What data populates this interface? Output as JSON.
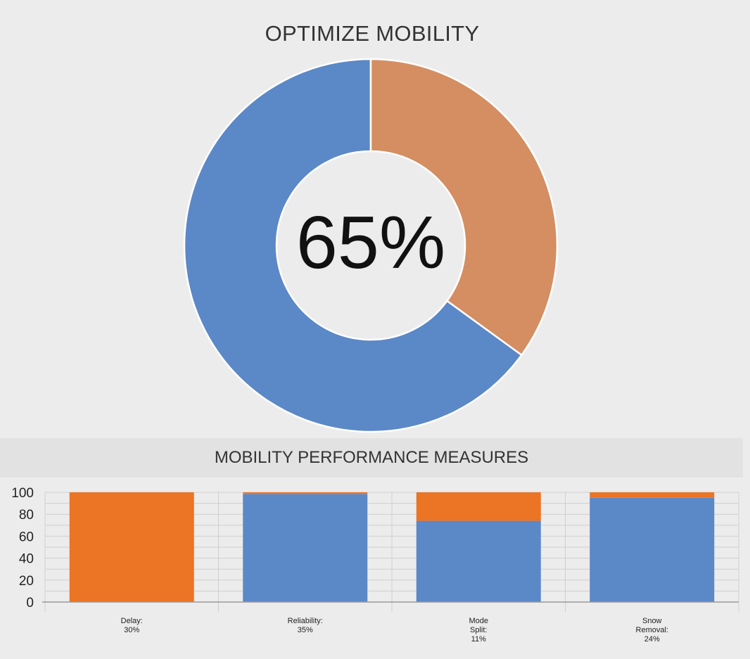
{
  "donut": {
    "title": "OPTIMIZE MOBILITY",
    "center_label": "65%"
  },
  "bars": {
    "title": "MOBILITY PERFORMANCE MEASURES"
  },
  "colors": {
    "blue": "#5b88c7",
    "orange_donut": "#d48e62",
    "orange_bar": "#eb7425",
    "background": "#ececec",
    "grid": "#cfcfcf"
  },
  "chart_data": [
    {
      "type": "pie",
      "title": "OPTIMIZE MOBILITY",
      "center_label": "65%",
      "slices": [
        {
          "value": 65,
          "color": "#5b88c7"
        },
        {
          "value": 35,
          "color": "#d48e62"
        }
      ]
    },
    {
      "type": "bar",
      "stacked": true,
      "title": "MOBILITY PERFORMANCE MEASURES",
      "categories": [
        [
          "Delay:",
          "30%"
        ],
        [
          "Reliability:",
          "35%"
        ],
        [
          "Mode",
          "Split:",
          "11%"
        ],
        [
          "Snow",
          "Removal:",
          "24%"
        ]
      ],
      "yticks": [
        "0",
        "20",
        "40",
        "60",
        "80",
        "100"
      ],
      "ylim": [
        0,
        100
      ],
      "grid": true,
      "series": [
        {
          "color": "#5b88c7",
          "values": [
            0,
            98.5,
            74,
            95
          ]
        },
        {
          "color": "#eb7425",
          "values": [
            100,
            1.5,
            26,
            5
          ]
        }
      ]
    }
  ]
}
